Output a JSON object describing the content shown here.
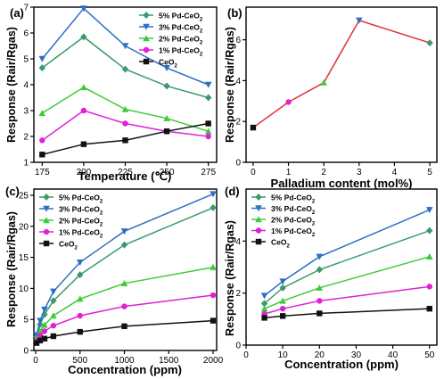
{
  "chart_data": [
    {
      "panel_label": "(a)",
      "type": "line",
      "xlabel": "Temperature (℃)",
      "ylabel": "Response (Rair/Rgas)",
      "xlim": [
        170,
        280
      ],
      "ylim": [
        1,
        7
      ],
      "xticks": [
        175,
        200,
        225,
        250,
        275
      ],
      "yticks": [
        1,
        2,
        3,
        4,
        5,
        6,
        7
      ],
      "x": [
        175,
        200,
        225,
        250,
        275
      ],
      "legend_position": "top-right",
      "series": [
        {
          "name": "5% Pd-CeO2",
          "base": "5% Pd-CeO",
          "sub": "2",
          "color": "#3a9a6e",
          "marker": "diamond",
          "values": [
            4.65,
            5.85,
            4.6,
            3.95,
            3.5
          ]
        },
        {
          "name": "3% Pd-CeO2",
          "base": "3% Pd-CeO",
          "sub": "2",
          "color": "#2d6fc4",
          "marker": "triangle-down",
          "values": [
            5.0,
            6.95,
            5.5,
            4.65,
            4.0
          ]
        },
        {
          "name": "2% Pd-CeO2",
          "base": "2% Pd-CeO",
          "sub": "2",
          "color": "#3ecb3a",
          "marker": "triangle-up",
          "values": [
            2.9,
            3.9,
            3.05,
            2.7,
            2.2
          ]
        },
        {
          "name": "1% Pd-CeO2",
          "base": "1% Pd-CeO",
          "sub": "2",
          "color": "#e020d6",
          "marker": "circle",
          "values": [
            1.85,
            3.0,
            2.5,
            2.2,
            2.0
          ]
        },
        {
          "name": "CeO2",
          "base": "CeO",
          "sub": "2",
          "color": "#111111",
          "marker": "square",
          "values": [
            1.3,
            1.7,
            1.85,
            2.2,
            2.5
          ]
        }
      ]
    },
    {
      "panel_label": "(b)",
      "type": "line",
      "xlabel": "Palladium content (mol%)",
      "ylabel": "Response (Rair/Rgas)",
      "xlim": [
        -0.2,
        5.2
      ],
      "ylim": [
        0,
        7.6
      ],
      "xticks": [
        0,
        1,
        2,
        3,
        4,
        5
      ],
      "yticks": [
        0,
        2,
        4,
        6
      ],
      "line_color": "#e03030",
      "points": [
        {
          "x": 0,
          "y": 1.7,
          "color": "#111111",
          "marker": "square"
        },
        {
          "x": 1,
          "y": 2.95,
          "color": "#e020d6",
          "marker": "circle"
        },
        {
          "x": 2,
          "y": 3.9,
          "color": "#3ecb3a",
          "marker": "triangle-up"
        },
        {
          "x": 3,
          "y": 6.95,
          "color": "#2d6fc4",
          "marker": "triangle-down"
        },
        {
          "x": 5,
          "y": 5.85,
          "color": "#3a9a6e",
          "marker": "diamond"
        }
      ]
    },
    {
      "panel_label": "(c)",
      "type": "line",
      "xlabel": "Concentration (ppm)",
      "ylabel": "Response (Rair/Rgas)",
      "xlim": [
        -20,
        2040
      ],
      "ylim": [
        0,
        26
      ],
      "xticks": [
        0,
        500,
        1000,
        1500,
        2000
      ],
      "yticks": [
        0,
        5,
        10,
        15,
        20,
        25
      ],
      "x": [
        10,
        50,
        100,
        200,
        500,
        1000,
        2000
      ],
      "legend_position": "top-left",
      "series": [
        {
          "name": "5% Pd-CeO2",
          "base": "5% Pd-CeO",
          "sub": "2",
          "color": "#3a9a6e",
          "marker": "diamond",
          "values": [
            2.2,
            4.2,
            5.8,
            8.0,
            12.2,
            17.0,
            23.0
          ]
        },
        {
          "name": "3% Pd-CeO2",
          "base": "3% Pd-CeO",
          "sub": "2",
          "color": "#2d6fc4",
          "marker": "triangle-down",
          "values": [
            2.5,
            4.8,
            6.6,
            9.5,
            14.2,
            19.2,
            25.2
          ]
        },
        {
          "name": "2% Pd-CeO2",
          "base": "2% Pd-CeO",
          "sub": "2",
          "color": "#3ecb3a",
          "marker": "triangle-up",
          "values": [
            1.9,
            3.1,
            4.1,
            5.6,
            8.3,
            10.8,
            13.4
          ]
        },
        {
          "name": "1% Pd-CeO2",
          "base": "1% Pd-CeO",
          "sub": "2",
          "color": "#e020d6",
          "marker": "circle",
          "values": [
            1.5,
            2.4,
            3.1,
            4.0,
            5.6,
            7.1,
            8.9
          ]
        },
        {
          "name": "CeO2",
          "base": "CeO",
          "sub": "2",
          "color": "#111111",
          "marker": "square",
          "values": [
            1.2,
            1.6,
            1.9,
            2.3,
            3.0,
            3.9,
            4.8
          ]
        }
      ]
    },
    {
      "panel_label": "(d)",
      "type": "line",
      "xlabel": "Concentration (ppm)",
      "ylabel": "Response (Rair/Rgas)",
      "xlim": [
        0,
        52
      ],
      "ylim": [
        0,
        6
      ],
      "xticks": [
        0,
        10,
        20,
        30,
        40,
        50
      ],
      "yticks": [
        0,
        2,
        4
      ],
      "x": [
        5,
        10,
        20,
        50
      ],
      "legend_position": "top-left",
      "series": [
        {
          "name": "5% Pd-CeO2",
          "base": "5% Pd-CeO",
          "sub": "2",
          "color": "#3a9a6e",
          "marker": "diamond",
          "values": [
            1.6,
            2.2,
            2.9,
            4.4
          ]
        },
        {
          "name": "3% Pd-CeO2",
          "base": "3% Pd-CeO",
          "sub": "2",
          "color": "#2d6fc4",
          "marker": "triangle-down",
          "values": [
            1.9,
            2.45,
            3.4,
            5.2
          ]
        },
        {
          "name": "2% Pd-CeO2",
          "base": "2% Pd-CeO",
          "sub": "2",
          "color": "#3ecb3a",
          "marker": "triangle-up",
          "values": [
            1.4,
            1.7,
            2.2,
            3.4
          ]
        },
        {
          "name": "1% Pd-CeO2",
          "base": "1% Pd-CeO",
          "sub": "2",
          "color": "#e020d6",
          "marker": "circle",
          "values": [
            1.2,
            1.4,
            1.7,
            2.25
          ]
        },
        {
          "name": "CeO2",
          "base": "CeO",
          "sub": "2",
          "color": "#111111",
          "marker": "square",
          "values": [
            1.05,
            1.12,
            1.22,
            1.4
          ]
        }
      ]
    }
  ]
}
